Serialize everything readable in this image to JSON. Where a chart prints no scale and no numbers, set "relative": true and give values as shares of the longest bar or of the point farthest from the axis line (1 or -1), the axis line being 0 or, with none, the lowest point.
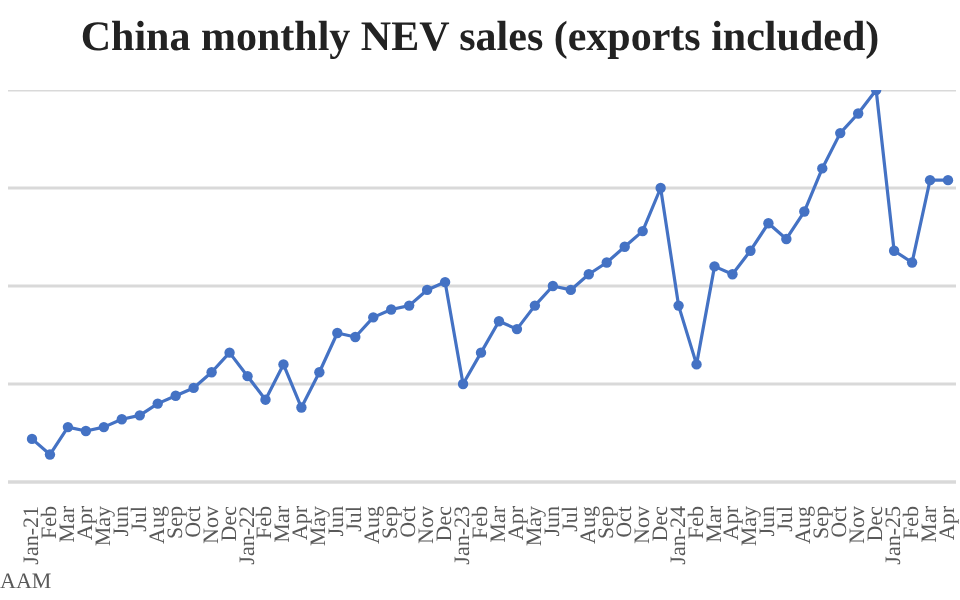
{
  "chart_data": {
    "type": "line",
    "title": "China monthly NEV sales (exports included)",
    "categories": [
      "Jan-21",
      "Feb",
      "Mar",
      "Apr",
      "May",
      "Jun",
      "Jul",
      "Aug",
      "Sep",
      "Oct",
      "Nov",
      "Dec",
      "Jan-22",
      "Feb",
      "Mar",
      "Apr",
      "May",
      "Jun",
      "Jul",
      "Aug",
      "Sep",
      "Oct",
      "Nov",
      "Dec",
      "Jan-23",
      "Feb",
      "Mar",
      "Apr",
      "May",
      "Jun",
      "Jul",
      "Aug",
      "Sep",
      "Oct",
      "Nov",
      "Dec",
      "Jan-24",
      "Feb",
      "Mar",
      "Apr",
      "May",
      "Jun",
      "Jul",
      "Aug",
      "Sep",
      "Oct",
      "Nov",
      "Dec",
      "Jan-25",
      "Feb",
      "Mar",
      "Apr"
    ],
    "series": [
      {
        "color": "#4472c4",
        "values": [
          0.11,
          0.07,
          0.14,
          0.13,
          0.14,
          0.16,
          0.17,
          0.2,
          0.22,
          0.24,
          0.28,
          0.33,
          0.27,
          0.21,
          0.3,
          0.19,
          0.28,
          0.38,
          0.37,
          0.42,
          0.44,
          0.45,
          0.49,
          0.51,
          0.25,
          0.33,
          0.41,
          0.39,
          0.45,
          0.5,
          0.49,
          0.53,
          0.56,
          0.6,
          0.64,
          0.75,
          0.45,
          0.3,
          0.55,
          0.53,
          0.59,
          0.66,
          0.62,
          0.69,
          0.8,
          0.89,
          0.94,
          1,
          0.59,
          0.56,
          0.77,
          0.77
        ]
      }
    ],
    "relative": true,
    "grid": "y",
    "marker": "circle",
    "line_style": "solid",
    "annotations": [
      "AAM"
    ]
  }
}
